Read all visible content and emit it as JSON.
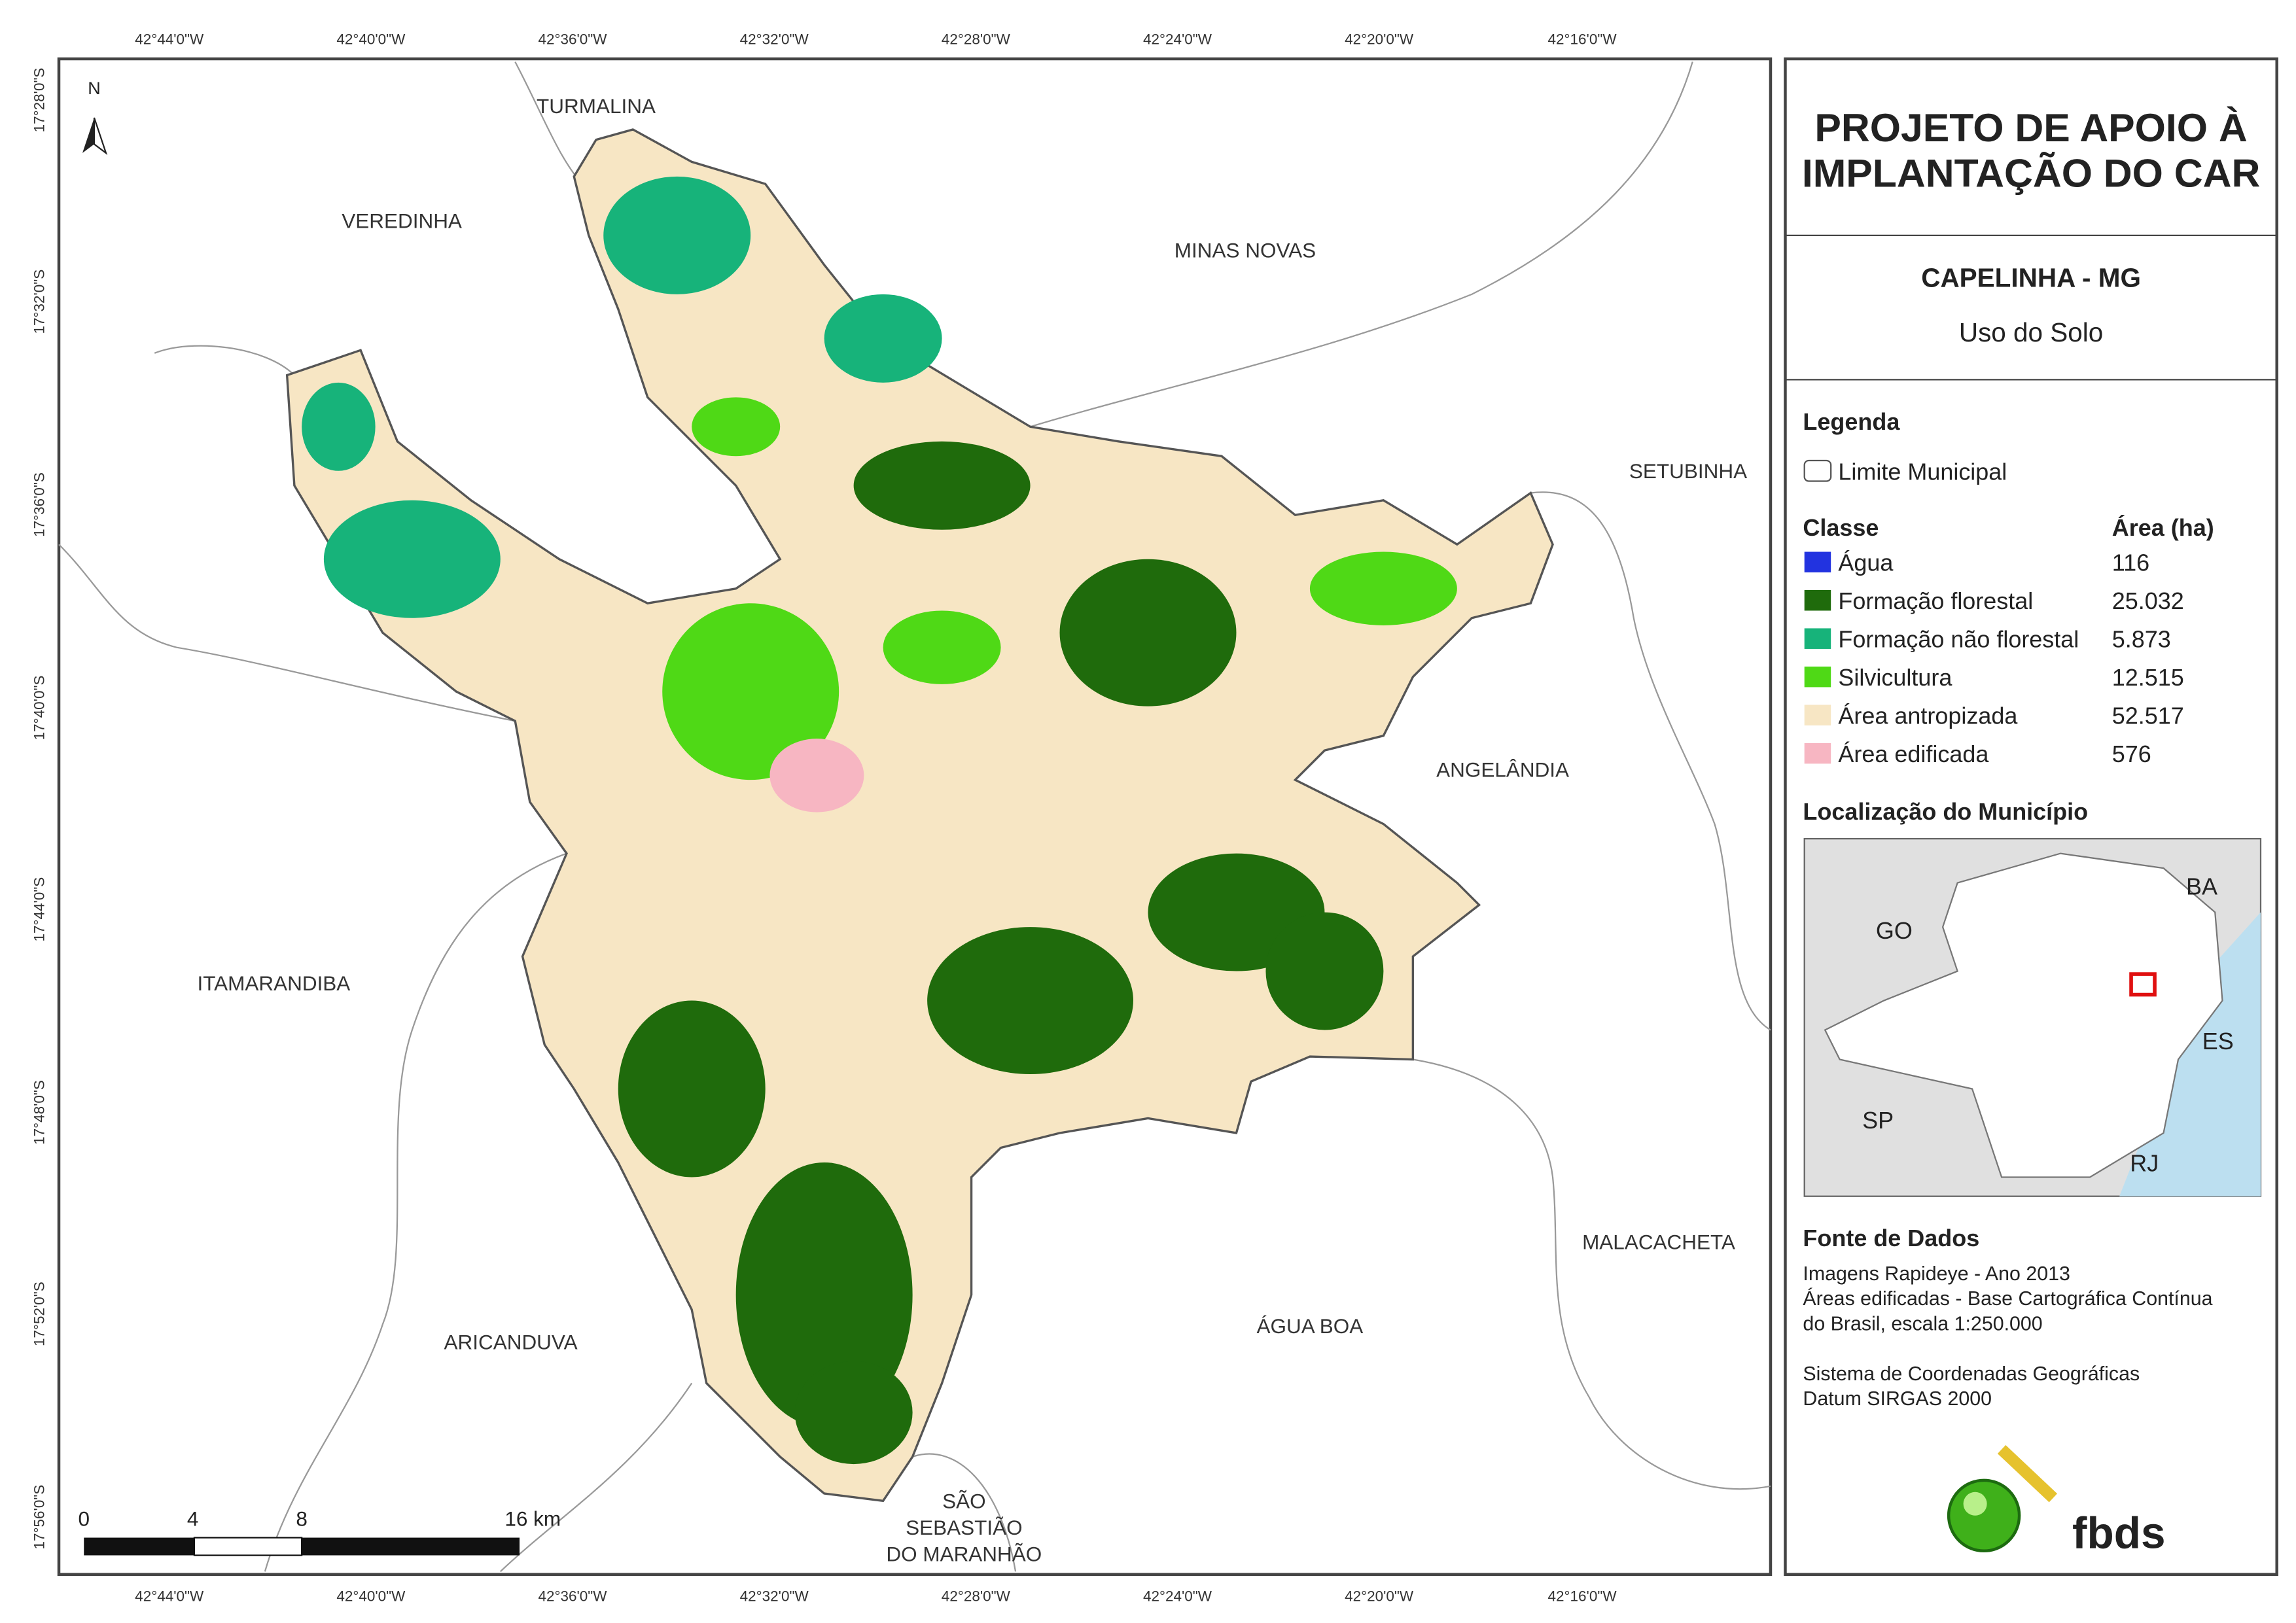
{
  "header": {
    "title_lines": [
      "PROJETO DE APOIO À",
      "IMPLANTAÇÃO DO CAR"
    ],
    "place": "CAPELINHA - MG",
    "subtitle": "Uso do Solo"
  },
  "legend": {
    "heading": "Legenda",
    "boundary": "Limite Municipal",
    "class_header": "Classe",
    "area_header": "Área (ha)",
    "classes": [
      {
        "name": "Água",
        "area": "116",
        "color": "#2233e0"
      },
      {
        "name": "Formação florestal",
        "area": "25.032",
        "color": "#1f6b0c"
      },
      {
        "name": "Formação não florestal",
        "area": "5.873",
        "color": "#17b37a"
      },
      {
        "name": "Silvicultura",
        "area": "12.515",
        "color": "#4fd916"
      },
      {
        "name": "Área antropizada",
        "area": "52.517",
        "color": "#f7e6c4"
      },
      {
        "name": "Área edificada",
        "area": "576",
        "color": "#f7b6c2"
      }
    ]
  },
  "locator": {
    "heading": "Localização do Município",
    "labels": [
      "BA",
      "GO",
      "ES",
      "SP",
      "RJ"
    ]
  },
  "sources": {
    "heading": "Fonte de Dados",
    "lines": [
      "Imagens Rapideye - Ano 2013",
      "Áreas edificadas - Base Cartográfica Contínua",
      "do Brasil, escala 1:250.000",
      "Sistema de Coordenadas Geográficas",
      "Datum SIRGAS 2000"
    ]
  },
  "map": {
    "north": "N",
    "municipalities": [
      [
        "TURMALINA"
      ],
      [
        "VEREDINHA"
      ],
      [
        "MINAS NOVAS"
      ],
      [
        "SETUBINHA"
      ],
      [
        "ANGELÂNDIA"
      ],
      [
        "ITAMARANDIBA"
      ],
      [
        "MALACACHETA"
      ],
      [
        "ARICANDUVA"
      ],
      [
        "ÁGUA BOA"
      ],
      [
        "SÃO",
        "SEBASTIÃO",
        "DO MARANHÃO"
      ]
    ],
    "lon_labels": [
      "42°44'0\"W",
      "42°40'0\"W",
      "42°36'0\"W",
      "42°32'0\"W",
      "42°28'0\"W",
      "42°24'0\"W",
      "42°20'0\"W",
      "42°16'0\"W"
    ],
    "lat_labels": [
      "17°28'0\"S",
      "17°32'0\"S",
      "17°36'0\"S",
      "17°40'0\"S",
      "17°44'0\"S",
      "17°48'0\"S",
      "17°52'0\"S",
      "17°56'0\"S"
    ],
    "scale_labels": [
      "0",
      "4",
      "8",
      "16 km"
    ]
  },
  "logo": "fbds"
}
